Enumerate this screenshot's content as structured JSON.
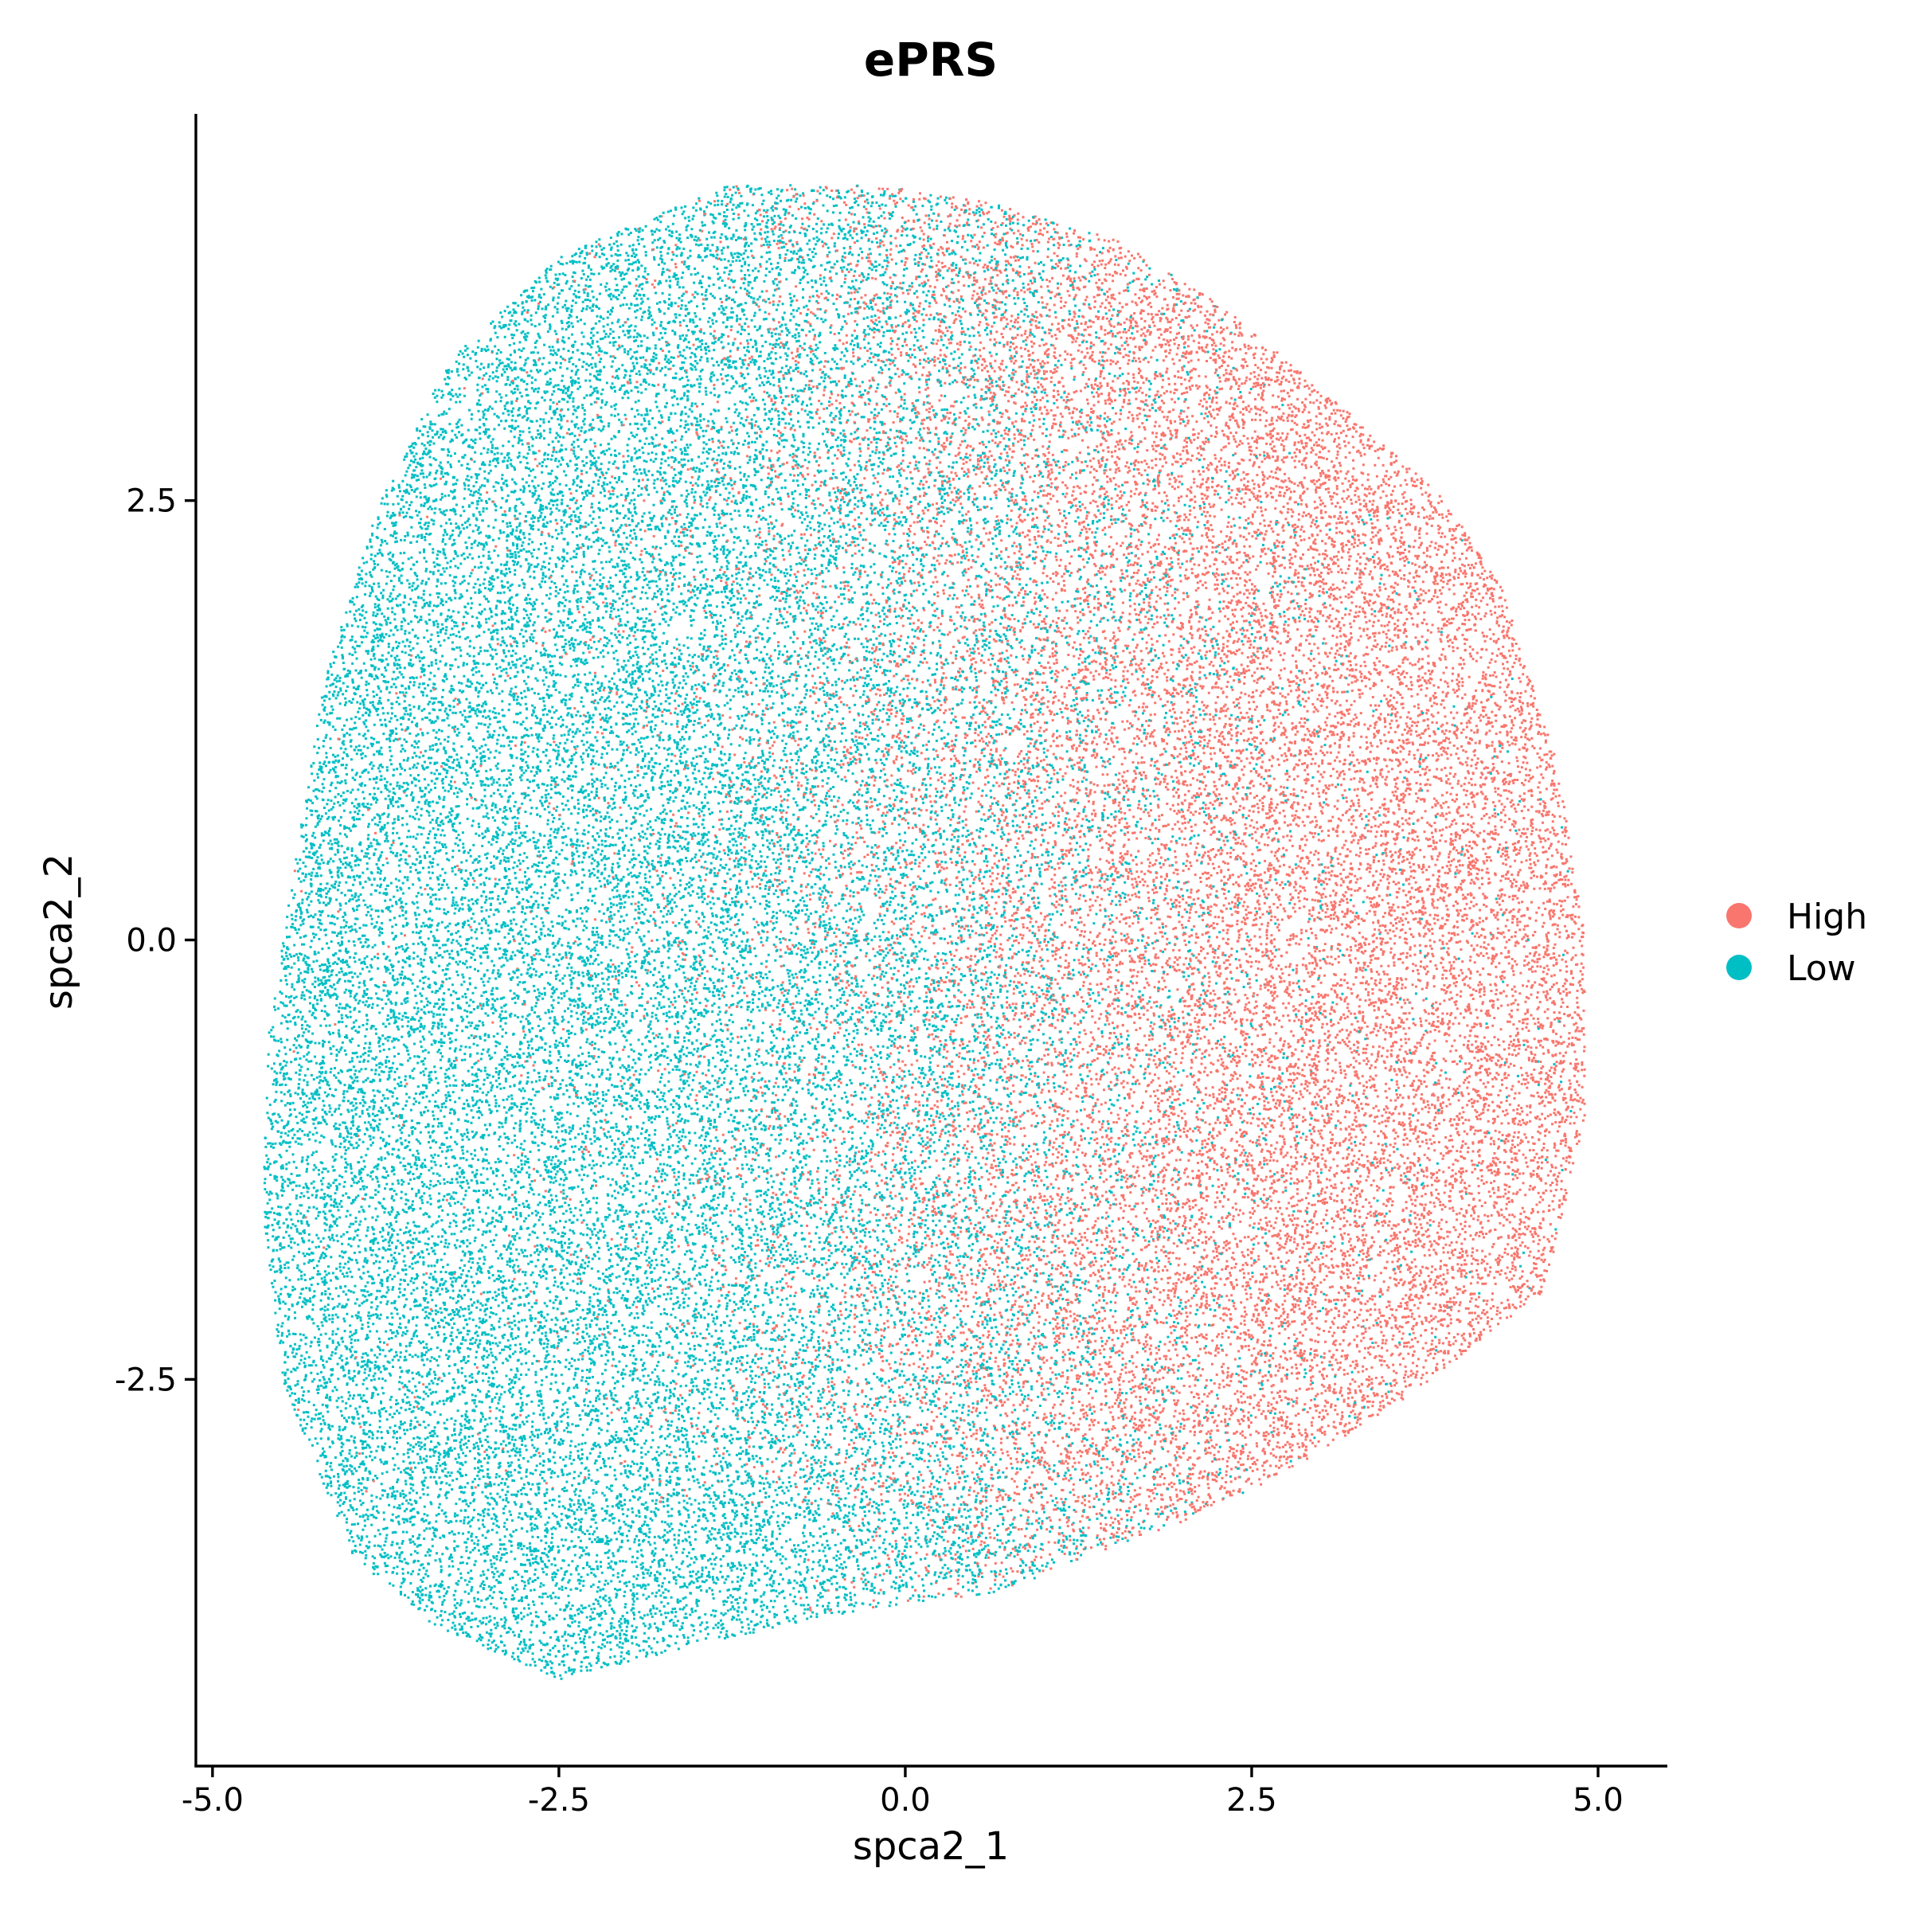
{
  "chart_data": {
    "type": "scatter",
    "title": "ePRS",
    "xlabel": "spca2_1",
    "ylabel": "spca2_2",
    "xlim": [
      -5.12,
      5.5
    ],
    "ylim": [
      -4.7,
      4.7
    ],
    "x_ticks": [
      -5.0,
      -2.5,
      0.0,
      2.5,
      5.0
    ],
    "x_tick_labels": [
      "-5.0",
      "-2.5",
      "0.0",
      "2.5",
      "5.0"
    ],
    "y_ticks": [
      -2.5,
      0.0,
      2.5
    ],
    "y_tick_labels": [
      "-2.5",
      "0.0",
      "2.5"
    ],
    "grid": false,
    "legend_position": "right",
    "series": [
      {
        "name": "High",
        "color": "#F8766D"
      },
      {
        "name": "Low",
        "color": "#00BFC4"
      }
    ],
    "cloud": {
      "outline": [
        [
          -1.3,
          4.3
        ],
        [
          -0.2,
          4.3
        ],
        [
          0.6,
          4.2
        ],
        [
          1.5,
          4.0
        ],
        [
          2.3,
          3.6
        ],
        [
          3.2,
          3.0
        ],
        [
          3.9,
          2.5
        ],
        [
          4.3,
          2.0
        ],
        [
          4.7,
          1.0
        ],
        [
          4.9,
          0.0
        ],
        [
          4.9,
          -1.0
        ],
        [
          4.6,
          -2.0
        ],
        [
          3.6,
          -2.6
        ],
        [
          2.8,
          -3.0
        ],
        [
          2.0,
          -3.3
        ],
        [
          1.3,
          -3.5
        ],
        [
          0.7,
          -3.7
        ],
        [
          -0.3,
          -3.8
        ],
        [
          -1.5,
          -4.0
        ],
        [
          -2.5,
          -4.2
        ],
        [
          -3.4,
          -3.9
        ],
        [
          -4.0,
          -3.5
        ],
        [
          -4.5,
          -2.5
        ],
        [
          -4.65,
          -1.5
        ],
        [
          -4.6,
          -0.5
        ],
        [
          -4.4,
          0.5
        ],
        [
          -4.2,
          1.5
        ],
        [
          -3.8,
          2.5
        ],
        [
          -3.3,
          3.3
        ],
        [
          -2.5,
          3.9
        ]
      ],
      "point_count": 60000
    }
  }
}
